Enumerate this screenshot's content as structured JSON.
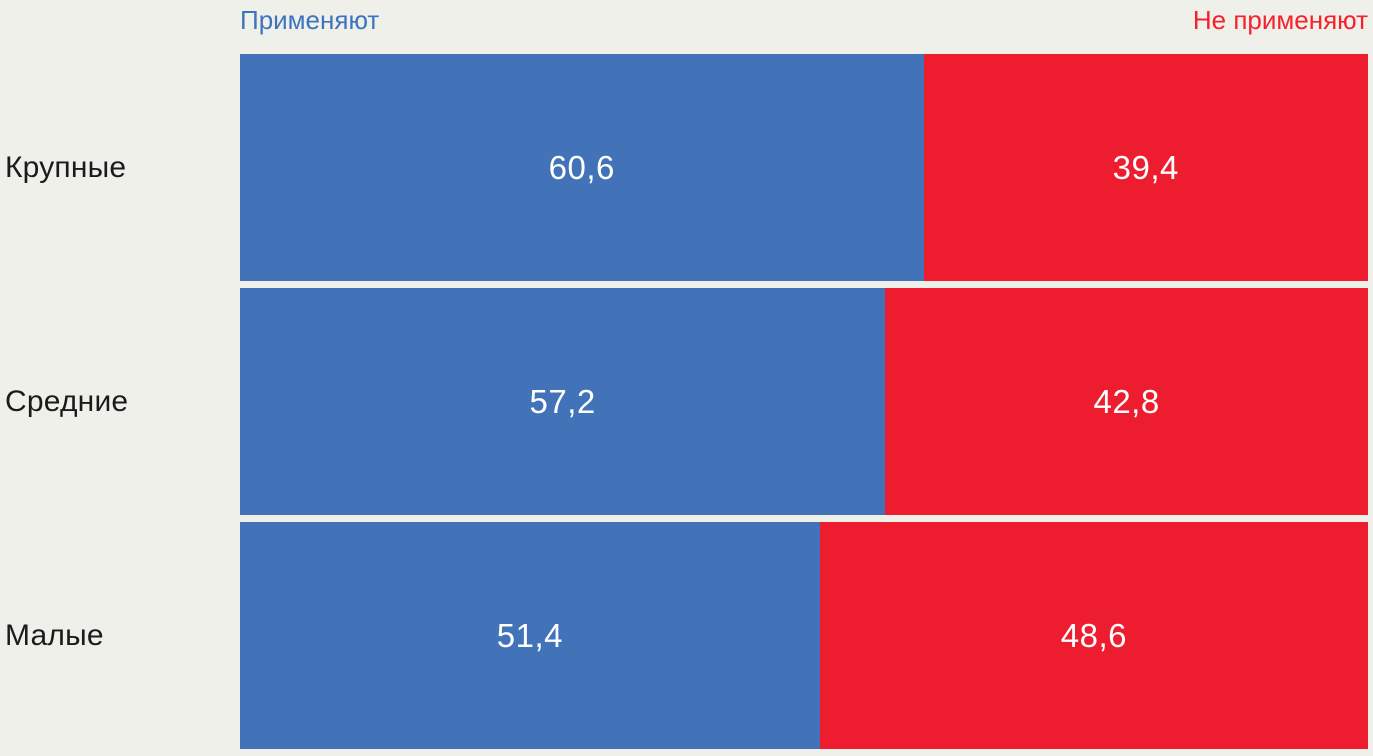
{
  "chart_data": {
    "type": "bar",
    "orientation": "horizontal",
    "stacked": true,
    "categories": [
      "Крупные",
      "Средние",
      "Малые"
    ],
    "series": [
      {
        "name": "Применяют",
        "color": "#4272B7",
        "values": [
          60.6,
          57.2,
          51.4
        ],
        "labels": [
          "60,6",
          "57,2",
          "51,4"
        ]
      },
      {
        "name": "Не применяют",
        "color": "#ED1C2E",
        "values": [
          39.4,
          42.8,
          48.6
        ],
        "labels": [
          "39,4",
          "42,8",
          "48,6"
        ]
      }
    ],
    "value_format": "percent, comma decimal separator",
    "value_label_color": "#FFFFFF",
    "legend_position": "top",
    "legend_text_colors": [
      "#3D74C0",
      "#F5222D"
    ],
    "category_label_color": "#1B1B1B",
    "background_color": "#EFF0E9",
    "xlim": [
      0,
      100
    ],
    "grid": false
  }
}
